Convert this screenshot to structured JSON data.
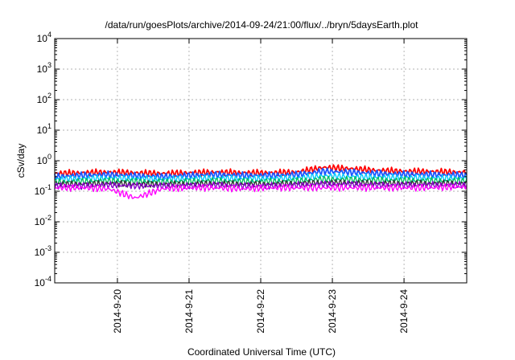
{
  "chart_data": {
    "type": "line",
    "title": "/data/run/goesPlots/archive/2014-09-24/21:00/flux/../bryn/5daysEarth.plot",
    "xlabel": "Coordinated Universal Time (UTC)",
    "ylabel": "cSv/day",
    "yscale": "log",
    "ylim": [
      0.0001,
      10000
    ],
    "xlim": [
      "2014-09-19 03:00",
      "2014-09-24 21:00"
    ],
    "grid": true,
    "legend": "none",
    "y_ticks": [
      {
        "value": 0.0001,
        "mantissa": "10",
        "exponent": "-4"
      },
      {
        "value": 0.001,
        "mantissa": "10",
        "exponent": "-3"
      },
      {
        "value": 0.01,
        "mantissa": "10",
        "exponent": "-2"
      },
      {
        "value": 0.1,
        "mantissa": "10",
        "exponent": "-1"
      },
      {
        "value": 1,
        "mantissa": "10",
        "exponent": "0"
      },
      {
        "value": 10,
        "mantissa": "10",
        "exponent": "1"
      },
      {
        "value": 100,
        "mantissa": "10",
        "exponent": "2"
      },
      {
        "value": 1000,
        "mantissa": "10",
        "exponent": "3"
      },
      {
        "value": 10000,
        "mantissa": "10",
        "exponent": "4"
      }
    ],
    "x_ticks": [
      "2014-9-20",
      "2014-9-21",
      "2014-9-22",
      "2014-9-23",
      "2014-9-24"
    ],
    "x": [
      "2014-09-19 03:00",
      "2014-09-19 12:00",
      "2014-09-19 21:00",
      "2014-09-20 06:00",
      "2014-09-20 15:00",
      "2014-09-21 00:00",
      "2014-09-21 09:00",
      "2014-09-21 18:00",
      "2014-09-22 03:00",
      "2014-09-22 12:00",
      "2014-09-22 21:00",
      "2014-09-23 06:00",
      "2014-09-23 15:00",
      "2014-09-24 00:00",
      "2014-09-24 09:00",
      "2014-09-24 18:00",
      "2014-09-24 21:00"
    ],
    "series": [
      {
        "color": "#ff0000",
        "values": [
          0.38,
          0.4,
          0.42,
          0.4,
          0.38,
          0.4,
          0.42,
          0.4,
          0.4,
          0.42,
          0.6,
          0.55,
          0.48,
          0.45,
          0.44,
          0.42,
          0.42
        ]
      },
      {
        "color": "#1a55ff",
        "values": [
          0.3,
          0.33,
          0.35,
          0.32,
          0.3,
          0.33,
          0.35,
          0.33,
          0.33,
          0.35,
          0.45,
          0.42,
          0.38,
          0.36,
          0.35,
          0.34,
          0.33
        ]
      },
      {
        "color": "#00c8ff",
        "values": [
          0.25,
          0.26,
          0.27,
          0.26,
          0.25,
          0.26,
          0.27,
          0.26,
          0.26,
          0.27,
          0.32,
          0.3,
          0.29,
          0.28,
          0.27,
          0.27,
          0.27
        ]
      },
      {
        "color": "#00c060",
        "values": [
          0.2,
          0.21,
          0.22,
          0.21,
          0.2,
          0.21,
          0.22,
          0.21,
          0.21,
          0.22,
          0.25,
          0.24,
          0.23,
          0.23,
          0.22,
          0.22,
          0.22
        ]
      },
      {
        "color": "#333333",
        "values": [
          0.17,
          0.17,
          0.18,
          0.17,
          0.17,
          0.17,
          0.18,
          0.17,
          0.17,
          0.18,
          0.19,
          0.19,
          0.18,
          0.18,
          0.18,
          0.18,
          0.18
        ]
      },
      {
        "color": "#8800cc",
        "values": [
          0.15,
          0.15,
          0.16,
          0.15,
          0.15,
          0.15,
          0.16,
          0.15,
          0.15,
          0.16,
          0.17,
          0.17,
          0.16,
          0.16,
          0.16,
          0.16,
          0.16
        ]
      },
      {
        "color": "#ff00ff",
        "values": [
          0.13,
          0.13,
          0.12,
          0.06,
          0.12,
          0.13,
          0.13,
          0.12,
          0.13,
          0.13,
          0.13,
          0.13,
          0.13,
          0.13,
          0.13,
          0.14,
          0.14
        ]
      }
    ]
  }
}
